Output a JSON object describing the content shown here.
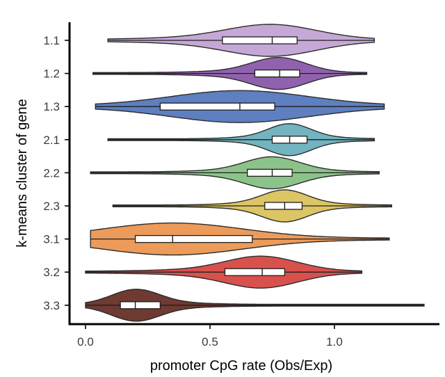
{
  "chart_data": {
    "type": "violin",
    "orientation": "horizontal",
    "title": "",
    "xlabel": "promoter CpG rate (Obs/Exp)",
    "ylabel": "k-means cluster of gene",
    "xlim": [
      -0.05,
      1.4
    ],
    "xticks": [
      0.0,
      0.5,
      1.0
    ],
    "xtick_labels": [
      "0.0",
      "0.5",
      "1.0"
    ],
    "grid": false,
    "legend": "none",
    "groups": [
      {
        "label": "1.1",
        "color": "#c6a8d6",
        "min": 0.09,
        "q1": 0.55,
        "median": 0.75,
        "q3": 0.85,
        "max": 1.16
      },
      {
        "label": "1.2",
        "color": "#9062ae",
        "min": 0.03,
        "q1": 0.68,
        "median": 0.78,
        "q3": 0.86,
        "max": 1.13
      },
      {
        "label": "1.3",
        "color": "#5e7fc0",
        "min": 0.04,
        "q1": 0.3,
        "median": 0.62,
        "q3": 0.76,
        "max": 1.2
      },
      {
        "label": "2.1",
        "color": "#72b4c0",
        "min": 0.09,
        "q1": 0.75,
        "median": 0.82,
        "q3": 0.89,
        "max": 1.16
      },
      {
        "label": "2.2",
        "color": "#8cc38a",
        "min": 0.02,
        "q1": 0.65,
        "median": 0.75,
        "q3": 0.83,
        "max": 1.18
      },
      {
        "label": "2.3",
        "color": "#dcc564",
        "min": 0.11,
        "q1": 0.72,
        "median": 0.8,
        "q3": 0.87,
        "max": 1.23
      },
      {
        "label": "3.1",
        "color": "#ec9b5a",
        "min": 0.02,
        "q1": 0.2,
        "median": 0.35,
        "q3": 0.67,
        "max": 1.22
      },
      {
        "label": "3.2",
        "color": "#d8514d",
        "min": 0.0,
        "q1": 0.56,
        "median": 0.71,
        "q3": 0.8,
        "max": 1.11
      },
      {
        "label": "3.3",
        "color": "#6e3a32",
        "min": 0.0,
        "q1": 0.14,
        "median": 0.2,
        "q3": 0.3,
        "max": 1.36
      }
    ]
  }
}
